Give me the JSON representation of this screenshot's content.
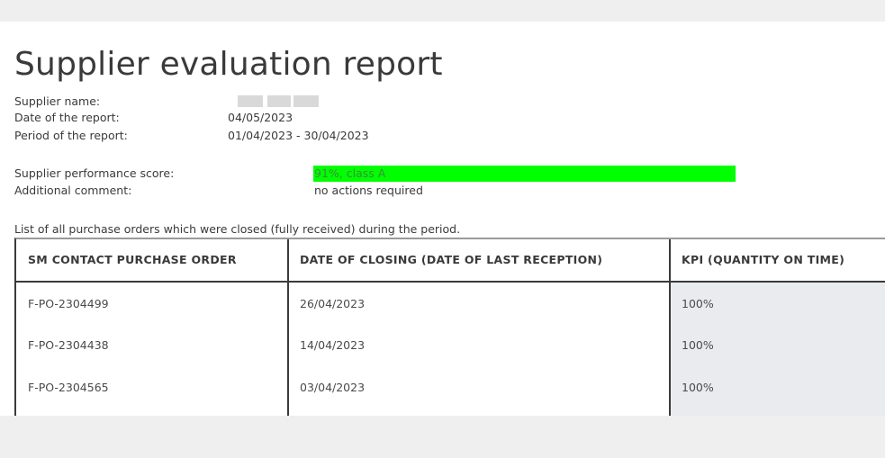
{
  "report": {
    "title": "Supplier evaluation report",
    "fields": {
      "supplier_name_label": "Supplier name:",
      "date_label": "Date of the report:",
      "date_value": "04/05/2023",
      "period_label": "Period of the report:",
      "period_value": "01/04/2023 - 30/04/2023",
      "score_label": "Supplier performance score:",
      "score_value": "91%, class A",
      "comment_label": "Additional comment:",
      "comment_value": "no actions required"
    },
    "score_bar_color": "#00ff00"
  },
  "table": {
    "caption": "List of all purchase orders which were closed (fully received) during the period.",
    "headers": [
      "SM CONTACT PURCHASE ORDER",
      "DATE OF CLOSING (DATE OF LAST RECEPTION)",
      "KPI (QUANTITY ON TIME)"
    ],
    "rows": [
      {
        "po": "F-PO-2304499",
        "date": "26/04/2023",
        "kpi": "100%"
      },
      {
        "po": "F-PO-2304438",
        "date": "14/04/2023",
        "kpi": "100%"
      },
      {
        "po": "F-PO-2304565",
        "date": "03/04/2023",
        "kpi": "100%"
      }
    ]
  }
}
